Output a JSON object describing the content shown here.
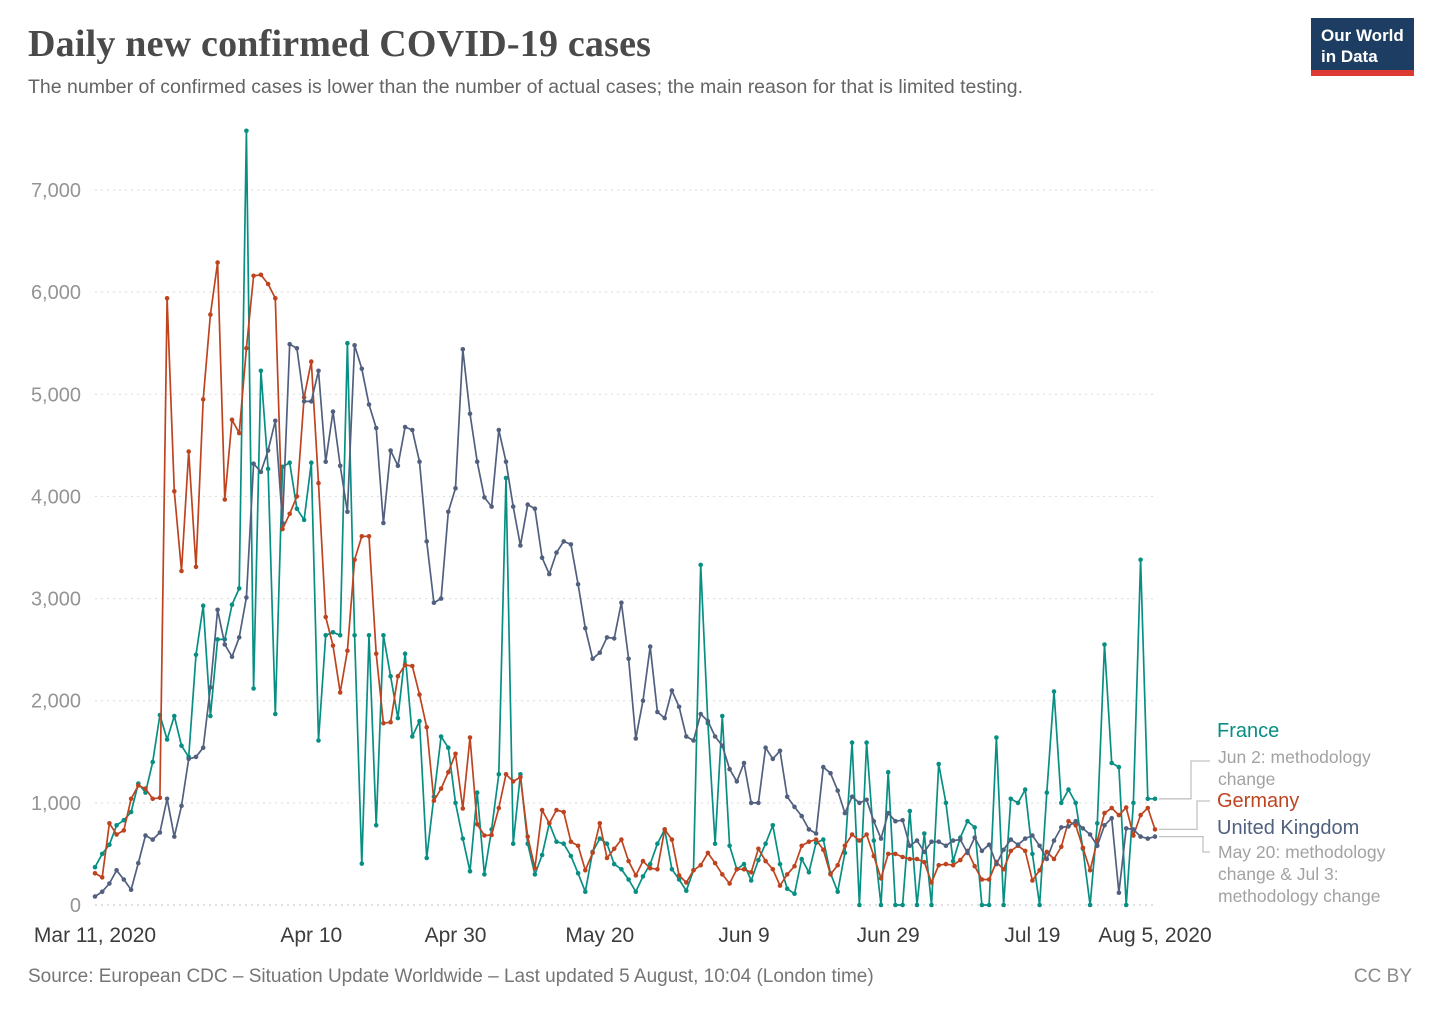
{
  "page": {
    "title": "Daily new confirmed COVID-19 cases",
    "subtitle": "The number of confirmed cases is lower than the number of actual cases; the main reason for that is limited testing.",
    "logo": {
      "line1": "Our World",
      "line2": "in Data",
      "bg_color": "#1d3d63",
      "bar_color": "#dc3a32"
    },
    "footer": {
      "source": "Source: European CDC – Situation Update Worldwide – Last updated 5 August, 10:04 (London time)",
      "license": "CC BY"
    }
  },
  "annotations": {
    "france": {
      "label": "France",
      "color": "#088f83",
      "note": [
        "Jun 2: methodology",
        "change"
      ]
    },
    "germany": {
      "label": "Germany",
      "color": "#be4420",
      "note": []
    },
    "uk": {
      "label": "United Kingdom",
      "color": "#51607f",
      "note": [
        "May 20: methodology",
        "change & Jul 3:",
        "methodology change"
      ]
    }
  },
  "chart_data": {
    "type": "line",
    "title": "Daily new confirmed COVID-19 cases",
    "x_start_date": "Mar 11, 2020",
    "x_end_date": "Aug 5, 2020",
    "x_tick_labels": [
      "Mar 11, 2020",
      "Apr 10",
      "Apr 30",
      "May 20",
      "Jun 9",
      "Jun 29",
      "Jul 19",
      "Aug 5, 2020"
    ],
    "x_tick_indices": [
      0,
      30,
      50,
      70,
      90,
      110,
      130,
      147
    ],
    "ylim": [
      0,
      7000
    ],
    "y_ticks": [
      0,
      1000,
      2000,
      3000,
      4000,
      5000,
      6000,
      7000
    ],
    "grid": "dashed horizontal",
    "legend_position": "right",
    "series": [
      {
        "name": "France",
        "color": "#088f83",
        "values": [
          370,
          500,
          590,
          780,
          830,
          910,
          1190,
          1100,
          1400,
          1860,
          1620,
          1850,
          1560,
          1450,
          2450,
          2930,
          1850,
          2600,
          2600,
          2940,
          3100,
          7580,
          2120,
          5230,
          4270,
          1870,
          4290,
          4330,
          3880,
          3770,
          4330,
          1610,
          2640,
          2670,
          2640,
          5500,
          2640,
          405,
          2640,
          780,
          2640,
          2240,
          1830,
          2460,
          1650,
          1800,
          460,
          1060,
          1650,
          1540,
          1000,
          650,
          330,
          1100,
          300,
          740,
          1280,
          4180,
          600,
          1280,
          600,
          300,
          490,
          800,
          620,
          600,
          480,
          310,
          130,
          520,
          650,
          600,
          400,
          350,
          250,
          130,
          280,
          400,
          600,
          740,
          350,
          250,
          140,
          340,
          3330,
          1780,
          600,
          1850,
          580,
          350,
          400,
          240,
          440,
          600,
          780,
          400,
          160,
          110,
          450,
          320,
          610,
          640,
          310,
          130,
          510,
          1590,
          0,
          1590,
          630,
          0,
          1300,
          0,
          0,
          920,
          0,
          700,
          0,
          1380,
          1000,
          430,
          660,
          820,
          760,
          0,
          0,
          1640,
          0,
          1040,
          1000,
          1130,
          500,
          0,
          1100,
          2090,
          1000,
          1130,
          1000,
          550,
          0,
          800,
          2550,
          1390,
          1350,
          0,
          1000,
          3380,
          1040,
          1040
        ]
      },
      {
        "name": "Germany",
        "color": "#be4420",
        "values": [
          310,
          270,
          800,
          690,
          730,
          1040,
          1170,
          1140,
          1040,
          1050,
          5940,
          4050,
          3270,
          4440,
          3310,
          4950,
          5780,
          6290,
          3970,
          4750,
          4620,
          5450,
          6160,
          6170,
          6080,
          5940,
          3680,
          3830,
          4000,
          4970,
          5320,
          4130,
          2820,
          2540,
          2080,
          2490,
          3380,
          3610,
          3610,
          2460,
          1780,
          1790,
          2240,
          2350,
          2340,
          2060,
          1740,
          1020,
          1140,
          1300,
          1480,
          945,
          1640,
          790,
          680,
          685,
          950,
          1280,
          1210,
          1250,
          670,
          360,
          930,
          800,
          930,
          910,
          620,
          580,
          340,
          510,
          800,
          460,
          550,
          640,
          430,
          290,
          430,
          360,
          350,
          740,
          640,
          290,
          220,
          340,
          390,
          510,
          410,
          300,
          210,
          350,
          350,
          320,
          550,
          430,
          350,
          190,
          300,
          380,
          580,
          620,
          640,
          540,
          300,
          390,
          580,
          690,
          630,
          690,
          480,
          260,
          500,
          500,
          470,
          450,
          450,
          420,
          220,
          390,
          400,
          390,
          440,
          530,
          380,
          250,
          250,
          420,
          350,
          530,
          580,
          530,
          240,
          340,
          520,
          450,
          570,
          820,
          780,
          560,
          340,
          630,
          900,
          950,
          880,
          955,
          680,
          880,
          950,
          740
        ]
      },
      {
        "name": "United Kingdom",
        "color": "#51607f",
        "values": [
          83,
          130,
          210,
          340,
          250,
          150,
          410,
          680,
          640,
          710,
          1040,
          670,
          970,
          1430,
          1450,
          1540,
          2130,
          2890,
          2550,
          2430,
          2620,
          3010,
          4320,
          4240,
          4450,
          4740,
          3740,
          5490,
          5450,
          4930,
          4930,
          5230,
          4340,
          4830,
          4300,
          3850,
          5480,
          5250,
          4900,
          4670,
          3740,
          4450,
          4300,
          4680,
          4650,
          4340,
          3560,
          2960,
          3000,
          3850,
          4080,
          5440,
          4810,
          4340,
          3990,
          3900,
          4650,
          4340,
          3900,
          3520,
          3920,
          3880,
          3400,
          3240,
          3450,
          3560,
          3530,
          3140,
          2710,
          2410,
          2470,
          2620,
          2610,
          2960,
          2410,
          1630,
          2000,
          2530,
          1890,
          1830,
          2100,
          1940,
          1650,
          1610,
          1870,
          1800,
          1650,
          1560,
          1330,
          1210,
          1390,
          1000,
          1000,
          1540,
          1430,
          1510,
          1060,
          960,
          870,
          740,
          700,
          1350,
          1290,
          1120,
          900,
          1060,
          1000,
          1030,
          820,
          650,
          900,
          820,
          830,
          580,
          630,
          520,
          620,
          620,
          580,
          630,
          640,
          510,
          660,
          530,
          590,
          400,
          540,
          640,
          590,
          650,
          680,
          580,
          450,
          630,
          760,
          770,
          820,
          750,
          690,
          580,
          780,
          850,
          120,
          750,
          740,
          670,
          650,
          670
        ]
      }
    ]
  }
}
